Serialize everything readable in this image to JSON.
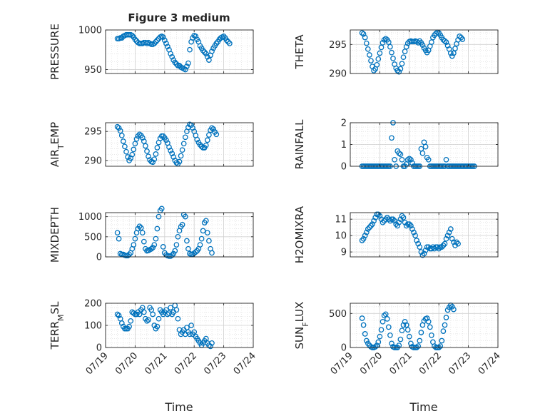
{
  "figure_title": "Figure 3 medium",
  "x_axis_label": "Time",
  "x_tick_labels": [
    "07/19",
    "07/20",
    "07/21",
    "07/22",
    "07/23",
    "07/24"
  ],
  "marker_color": "#0072BD",
  "chart_data": [
    {
      "type": "scatter",
      "title": "Figure 3 medium",
      "ylabel": "PRESSURE",
      "ylim": [
        945,
        1000
      ],
      "yticks": [
        950,
        1000
      ],
      "xlim": [
        0,
        5
      ],
      "grid": true,
      "x": [
        0.4,
        0.45,
        0.5,
        0.55,
        0.6,
        0.65,
        0.7,
        0.75,
        0.8,
        0.85,
        0.9,
        0.95,
        1.0,
        1.05,
        1.1,
        1.15,
        1.2,
        1.25,
        1.3,
        1.35,
        1.4,
        1.45,
        1.5,
        1.55,
        1.6,
        1.65,
        1.7,
        1.75,
        1.8,
        1.85,
        1.9,
        1.95,
        2.0,
        2.05,
        2.1,
        2.15,
        2.2,
        2.25,
        2.3,
        2.35,
        2.4,
        2.45,
        2.5,
        2.55,
        2.6,
        2.65,
        2.7,
        2.75,
        2.8,
        2.85,
        2.9,
        2.95,
        3.0,
        3.05,
        3.1,
        3.15,
        3.2,
        3.25,
        3.3,
        3.35,
        3.4,
        3.45,
        3.5,
        3.55,
        3.6,
        3.65,
        3.7,
        3.75,
        3.8,
        3.85,
        3.9,
        3.95,
        4.0,
        4.05,
        4.1,
        4.15,
        4.2
      ],
      "y": [
        989,
        989,
        990,
        990,
        992,
        993,
        994,
        994,
        994,
        994,
        993,
        991,
        988,
        986,
        984,
        983,
        983,
        983,
        984,
        984,
        983,
        984,
        983,
        982,
        982,
        983,
        985,
        987,
        989,
        991,
        992,
        991,
        987,
        983,
        979,
        975,
        970,
        966,
        962,
        959,
        957,
        955,
        955,
        953,
        952,
        951,
        950,
        954,
        958,
        975,
        985,
        990,
        993,
        992,
        988,
        985,
        980,
        977,
        974,
        972,
        970,
        966,
        962,
        968,
        973,
        977,
        980,
        983,
        985,
        988,
        990,
        991,
        992,
        990,
        987,
        985,
        983
      ],
      "x_tick_labels": []
    },
    {
      "type": "scatter",
      "ylabel": "THETA",
      "ylim": [
        290,
        297.5
      ],
      "yticks": [
        290,
        295
      ],
      "xlim": [
        0,
        5
      ],
      "grid": true,
      "x": [
        0.4,
        0.45,
        0.5,
        0.55,
        0.6,
        0.65,
        0.7,
        0.75,
        0.8,
        0.85,
        0.9,
        0.95,
        1.0,
        1.05,
        1.1,
        1.15,
        1.2,
        1.25,
        1.3,
        1.35,
        1.4,
        1.45,
        1.5,
        1.55,
        1.6,
        1.65,
        1.7,
        1.75,
        1.8,
        1.85,
        1.9,
        1.95,
        2.0,
        2.05,
        2.1,
        2.15,
        2.2,
        2.25,
        2.3,
        2.35,
        2.4,
        2.45,
        2.5,
        2.55,
        2.6,
        2.65,
        2.7,
        2.75,
        2.8,
        2.85,
        2.9,
        2.95,
        3.0,
        3.05,
        3.1,
        3.15,
        3.2,
        3.25,
        3.3,
        3.35,
        3.4,
        3.45,
        3.5,
        3.55,
        3.6,
        3.65,
        3.7,
        3.75,
        3.8,
        3.85,
        3.9,
        3.95,
        4.0,
        4.05,
        4.1,
        4.15,
        4.2
      ],
      "y": [
        297,
        296.8,
        296.2,
        295.2,
        294.2,
        293.2,
        292.2,
        291.2,
        290.5,
        290.8,
        291.5,
        292.5,
        293.5,
        294.5,
        295.3,
        295.8,
        296,
        295.8,
        295.4,
        294.6,
        293.6,
        292.6,
        291.6,
        290.9,
        290.5,
        290.3,
        290.8,
        291.7,
        292.8,
        293.8,
        294.6,
        295.2,
        295.5,
        295.6,
        295.5,
        295.5,
        295.6,
        295.5,
        295.3,
        295.6,
        295.3,
        294.9,
        294.4,
        294,
        293.6,
        294,
        294.7,
        295.4,
        296.2,
        296.6,
        296.9,
        297.1,
        297,
        296.6,
        296.2,
        295.8,
        295.6,
        295.4,
        294.8,
        294.2,
        293.5,
        293,
        293.5,
        294.3,
        295.1,
        295.8,
        296.4,
        296.2,
        295.9,
        null,
        null,
        null,
        null,
        null,
        null,
        null,
        null
      ],
      "x_tick_labels": []
    },
    {
      "type": "scatter",
      "ylabel": "AIR_TEMP",
      "ylim": [
        289,
        296.5
      ],
      "yticks": [
        290,
        295
      ],
      "xlim": [
        0,
        5
      ],
      "grid": true,
      "x": [
        0.4,
        0.45,
        0.5,
        0.55,
        0.6,
        0.65,
        0.7,
        0.75,
        0.8,
        0.85,
        0.9,
        0.95,
        1.0,
        1.05,
        1.1,
        1.15,
        1.2,
        1.25,
        1.3,
        1.35,
        1.4,
        1.45,
        1.5,
        1.55,
        1.6,
        1.65,
        1.7,
        1.75,
        1.8,
        1.85,
        1.9,
        1.95,
        2.0,
        2.05,
        2.1,
        2.15,
        2.2,
        2.25,
        2.3,
        2.35,
        2.4,
        2.45,
        2.5,
        2.55,
        2.6,
        2.65,
        2.7,
        2.75,
        2.8,
        2.85,
        2.9,
        2.95,
        3.0,
        3.05,
        3.1,
        3.15,
        3.2,
        3.25,
        3.3,
        3.35,
        3.4,
        3.45,
        3.5,
        3.55,
        3.6,
        3.65,
        3.7,
        3.75,
        3.8,
        3.85,
        3.9,
        3.95,
        4.0,
        4.05,
        4.1,
        4.15,
        4.2
      ],
      "y": [
        295.8,
        295.6,
        295.1,
        294.3,
        293.3,
        292.4,
        291.5,
        290.6,
        290,
        290.4,
        291,
        291.9,
        292.9,
        293.7,
        294.2,
        294.5,
        294.3,
        293.9,
        293.3,
        292.5,
        291.6,
        290.7,
        290.1,
        289.8,
        289.7,
        290.2,
        291.1,
        292.2,
        293.1,
        293.8,
        294.2,
        294.2,
        293.9,
        293.5,
        293,
        292.3,
        291.7,
        291.2,
        290.6,
        290,
        289.6,
        289.4,
        289.8,
        290.8,
        291.8,
        292.9,
        294,
        295,
        295.7,
        296.2,
        296.1,
        295.6,
        295,
        294.3,
        293.6,
        293.1,
        292.7,
        292.4,
        292.2,
        292.2,
        292.6,
        293.5,
        294.4,
        295.2,
        295.6,
        295.4,
        294.9,
        294.5,
        null,
        null,
        null,
        null,
        null,
        null,
        null,
        null,
        null
      ],
      "x_tick_labels": []
    },
    {
      "type": "scatter",
      "ylabel": "RAINFALL",
      "ylim": [
        0,
        2
      ],
      "yticks": [
        0,
        1,
        2
      ],
      "xlim": [
        0,
        5
      ],
      "grid": true,
      "x": [
        0.4,
        0.45,
        0.5,
        0.55,
        0.6,
        0.65,
        0.7,
        0.75,
        0.8,
        0.85,
        0.9,
        0.95,
        1.0,
        1.05,
        1.1,
        1.15,
        1.2,
        1.25,
        1.3,
        1.35,
        1.4,
        1.45,
        1.5,
        1.55,
        1.6,
        1.65,
        1.7,
        1.75,
        1.8,
        1.85,
        1.9,
        1.95,
        2.0,
        2.05,
        2.1,
        2.15,
        2.2,
        2.25,
        2.3,
        2.35,
        2.4,
        2.45,
        2.5,
        2.55,
        2.6,
        2.65,
        2.7,
        2.75,
        2.8,
        2.85,
        2.9,
        2.95,
        3.0,
        3.05,
        3.1,
        3.15,
        3.2,
        3.25,
        3.3,
        3.35,
        3.4,
        3.45,
        3.5,
        3.55,
        3.6,
        3.65,
        3.7,
        3.75,
        3.8,
        3.85,
        3.9,
        3.95,
        4.0,
        4.05,
        4.1,
        4.15,
        4.2
      ],
      "y": [
        0,
        0,
        0,
        0,
        0,
        0,
        0,
        0,
        0,
        0,
        0,
        0,
        0,
        0,
        0,
        0,
        0,
        0,
        0,
        0,
        1.3,
        2.0,
        0.3,
        0,
        0.7,
        0.6,
        0.55,
        0.3,
        0,
        0,
        0.1,
        0.3,
        0.35,
        0.3,
        0.15,
        0,
        0,
        0,
        0,
        0,
        0.8,
        0.6,
        1.1,
        0.9,
        0.4,
        0.3,
        0,
        0,
        0,
        0,
        0,
        0,
        0,
        0,
        0,
        0,
        0,
        0.3,
        0,
        0,
        0,
        0,
        0,
        0,
        0,
        0,
        0,
        0,
        0,
        0,
        0,
        0,
        0,
        0,
        0,
        0,
        0
      ],
      "x_tick_labels": []
    },
    {
      "type": "scatter",
      "ylabel": "MIXDEPTH",
      "ylim": [
        0,
        1100
      ],
      "yticks": [
        0,
        500,
        1000
      ],
      "xlim": [
        0,
        5
      ],
      "grid": true,
      "x": [
        0.4,
        0.45,
        0.5,
        0.55,
        0.6,
        0.65,
        0.7,
        0.75,
        0.8,
        0.85,
        0.9,
        0.95,
        1.0,
        1.05,
        1.1,
        1.15,
        1.2,
        1.25,
        1.3,
        1.35,
        1.4,
        1.45,
        1.5,
        1.55,
        1.6,
        1.65,
        1.7,
        1.75,
        1.8,
        1.85,
        1.9,
        1.95,
        2.0,
        2.05,
        2.1,
        2.15,
        2.2,
        2.25,
        2.3,
        2.35,
        2.4,
        2.45,
        2.5,
        2.55,
        2.6,
        2.65,
        2.7,
        2.75,
        2.8,
        2.85,
        2.9,
        2.95,
        3.0,
        3.05,
        3.1,
        3.15,
        3.2,
        3.25,
        3.3,
        3.35,
        3.4,
        3.45,
        3.5,
        3.55,
        3.6,
        3.65,
        3.7,
        3.75,
        3.8,
        3.85,
        3.9,
        3.95,
        4.0,
        4.05,
        4.1,
        4.15,
        4.2
      ],
      "y": [
        600,
        450,
        80,
        60,
        60,
        40,
        30,
        30,
        60,
        100,
        200,
        300,
        450,
        600,
        700,
        760,
        720,
        600,
        380,
        200,
        150,
        160,
        180,
        200,
        230,
        300,
        450,
        700,
        1000,
        1150,
        1200,
        250,
        100,
        50,
        30,
        20,
        20,
        40,
        80,
        150,
        300,
        500,
        650,
        750,
        800,
        1050,
        1000,
        400,
        200,
        80,
        60,
        60,
        90,
        120,
        150,
        200,
        300,
        450,
        650,
        850,
        900,
        600,
        400,
        200,
        100,
        null,
        null,
        null,
        null,
        null,
        null,
        null,
        null,
        null,
        null,
        null,
        null
      ],
      "x_tick_labels": []
    },
    {
      "type": "scatter",
      "ylabel": "H2OMIXRA",
      "ylim": [
        8.7,
        11.4
      ],
      "yticks": [
        9,
        10,
        11
      ],
      "xlim": [
        0,
        5
      ],
      "grid": true,
      "x": [
        0.4,
        0.45,
        0.5,
        0.55,
        0.6,
        0.65,
        0.7,
        0.75,
        0.8,
        0.85,
        0.9,
        0.95,
        1.0,
        1.05,
        1.1,
        1.15,
        1.2,
        1.25,
        1.3,
        1.35,
        1.4,
        1.45,
        1.5,
        1.55,
        1.6,
        1.65,
        1.7,
        1.75,
        1.8,
        1.85,
        1.9,
        1.95,
        2.0,
        2.05,
        2.1,
        2.15,
        2.2,
        2.25,
        2.3,
        2.35,
        2.4,
        2.45,
        2.5,
        2.55,
        2.6,
        2.65,
        2.7,
        2.75,
        2.8,
        2.85,
        2.9,
        2.95,
        3.0,
        3.05,
        3.1,
        3.15,
        3.2,
        3.25,
        3.3,
        3.35,
        3.4,
        3.45,
        3.5,
        3.55,
        3.6,
        3.65,
        3.7,
        3.75,
        3.8,
        3.85,
        3.9,
        3.95,
        4.0,
        4.05,
        4.1,
        4.15,
        4.2
      ],
      "y": [
        9.7,
        9.8,
        10,
        10.2,
        10.4,
        10.5,
        10.6,
        10.7,
        10.9,
        11.1,
        11.3,
        11.3,
        11.2,
        11,
        10.8,
        10.9,
        11,
        11.1,
        11,
        10.9,
        11,
        11,
        10.9,
        10.7,
        10.6,
        10.8,
        11,
        11.2,
        11.1,
        10.8,
        10.6,
        10.7,
        10.7,
        10.6,
        10.4,
        10.2,
        10,
        9.7,
        9.5,
        9.3,
        9,
        8.8,
        8.9,
        9.1,
        9.3,
        9.3,
        9.2,
        9.2,
        9.3,
        9.2,
        9.3,
        9.3,
        9.2,
        9.3,
        9.3,
        9.4,
        9.5,
        9.8,
        10,
        10.2,
        10.4,
        9.8,
        9.6,
        9.4,
        9.6,
        9.5,
        null,
        null,
        null,
        null,
        null,
        null,
        null,
        null,
        null,
        null,
        null
      ],
      "x_tick_labels": []
    },
    {
      "type": "scatter",
      "ylabel": "TERR_MSL",
      "ylim": [
        0,
        200
      ],
      "yticks": [
        0,
        100,
        200
      ],
      "xlim": [
        0,
        5
      ],
      "grid": true,
      "x": [
        0.4,
        0.45,
        0.5,
        0.55,
        0.6,
        0.65,
        0.7,
        0.75,
        0.8,
        0.85,
        0.9,
        0.95,
        1.0,
        1.05,
        1.1,
        1.15,
        1.2,
        1.25,
        1.3,
        1.35,
        1.4,
        1.45,
        1.5,
        1.55,
        1.6,
        1.65,
        1.7,
        1.75,
        1.8,
        1.85,
        1.9,
        1.95,
        2.0,
        2.05,
        2.1,
        2.15,
        2.2,
        2.25,
        2.3,
        2.35,
        2.4,
        2.45,
        2.5,
        2.55,
        2.6,
        2.65,
        2.7,
        2.75,
        2.8,
        2.85,
        2.9,
        2.95,
        3.0,
        3.05,
        3.1,
        3.15,
        3.2,
        3.25,
        3.3,
        3.35,
        3.4,
        3.45,
        3.5,
        3.55,
        3.6,
        3.65,
        3.7,
        3.75,
        3.8,
        3.85,
        3.9,
        3.95,
        4.0,
        4.05,
        4.1,
        4.15,
        4.2
      ],
      "y": [
        150,
        145,
        130,
        110,
        95,
        85,
        85,
        85,
        95,
        120,
        160,
        155,
        150,
        150,
        160,
        150,
        170,
        180,
        160,
        130,
        120,
        125,
        180,
        170,
        150,
        100,
        85,
        95,
        130,
        170,
        160,
        150,
        160,
        170,
        150,
        155,
        180,
        150,
        160,
        190,
        170,
        130,
        80,
        60,
        70,
        80,
        60,
        90,
        70,
        60,
        100,
        60,
        70,
        50,
        40,
        30,
        20,
        10,
        20,
        30,
        40,
        20,
        10,
        5,
        20,
        null,
        null,
        null,
        null,
        null,
        null,
        null,
        null,
        null,
        null,
        null,
        null
      ],
      "x_tick_labels": [
        "07/19",
        "07/20",
        "07/21",
        "07/22",
        "07/23",
        "07/24"
      ]
    },
    {
      "type": "scatter",
      "ylabel": "SUN_FLUX",
      "ylim": [
        0,
        650
      ],
      "yticks": [
        0,
        500
      ],
      "xlim": [
        0,
        5
      ],
      "grid": true,
      "x": [
        0.4,
        0.45,
        0.5,
        0.55,
        0.6,
        0.65,
        0.7,
        0.75,
        0.8,
        0.85,
        0.9,
        0.95,
        1.0,
        1.05,
        1.1,
        1.15,
        1.2,
        1.25,
        1.3,
        1.35,
        1.4,
        1.45,
        1.5,
        1.55,
        1.6,
        1.65,
        1.7,
        1.75,
        1.8,
        1.85,
        1.9,
        1.95,
        2.0,
        2.05,
        2.1,
        2.15,
        2.2,
        2.25,
        2.3,
        2.35,
        2.4,
        2.45,
        2.5,
        2.55,
        2.6,
        2.65,
        2.7,
        2.75,
        2.8,
        2.85,
        2.9,
        2.95,
        3.0,
        3.05,
        3.1,
        3.15,
        3.2,
        3.25,
        3.3,
        3.35,
        3.4,
        3.45,
        3.5,
        3.55,
        3.6,
        3.65,
        3.7,
        3.75,
        3.8,
        3.85,
        3.9,
        3.95,
        4.0,
        4.05,
        4.1,
        4.15,
        4.2
      ],
      "y": [
        430,
        330,
        200,
        100,
        60,
        30,
        10,
        0,
        0,
        10,
        30,
        80,
        160,
        260,
        380,
        470,
        490,
        420,
        300,
        180,
        60,
        10,
        0,
        0,
        0,
        30,
        120,
        250,
        330,
        380,
        330,
        260,
        160,
        60,
        10,
        0,
        0,
        0,
        20,
        100,
        220,
        330,
        390,
        420,
        430,
        380,
        300,
        180,
        80,
        20,
        0,
        0,
        0,
        20,
        100,
        240,
        330,
        440,
        550,
        590,
        620,
        600,
        560,
        null,
        null,
        null,
        null,
        null,
        null,
        null,
        null,
        null,
        null,
        null,
        null,
        null,
        null
      ],
      "x_tick_labels": [
        "07/19",
        "07/20",
        "07/21",
        "07/22",
        "07/23",
        "07/24"
      ]
    }
  ]
}
